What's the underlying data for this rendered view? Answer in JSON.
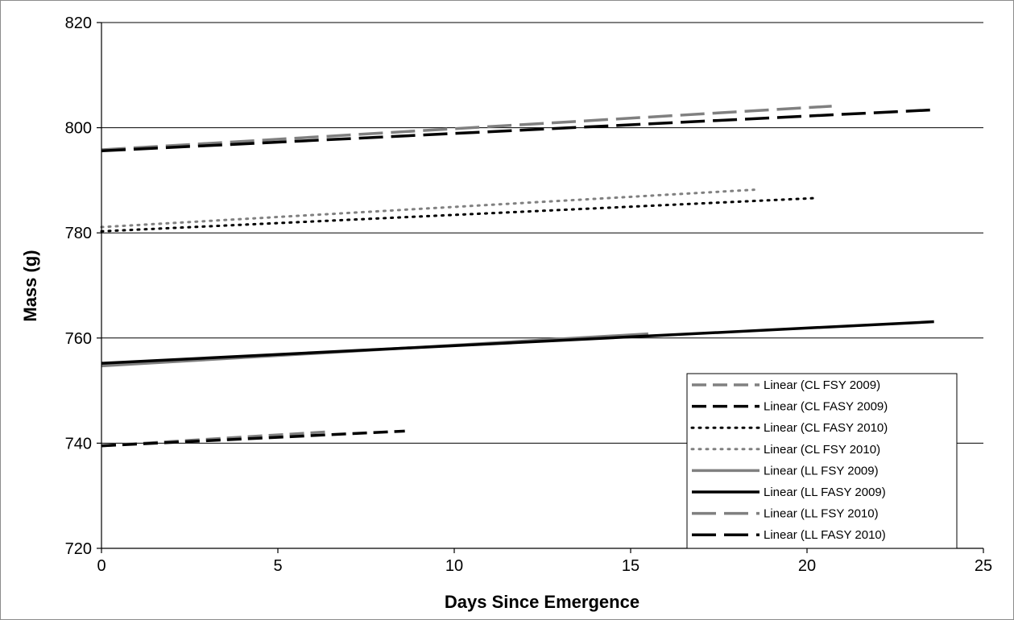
{
  "chart_data": {
    "type": "line",
    "title": "",
    "xlabel": "Days Since Emergence",
    "ylabel": "Mass (g)",
    "xlim": [
      0,
      25
    ],
    "ylim": [
      720,
      820
    ],
    "xticks": [
      0,
      5,
      10,
      15,
      20,
      25
    ],
    "yticks": [
      720,
      740,
      760,
      780,
      800,
      820
    ],
    "grid": "horizontal major",
    "legend_position": "bottom-right",
    "series": [
      {
        "name": "Linear (CL FSY 2009)",
        "color": "#808080",
        "style": "dashed",
        "x": [
          0,
          6.5
        ],
        "y": [
          739.5,
          742.2
        ]
      },
      {
        "name": "Linear (CL FASY 2009)",
        "color": "#000000",
        "style": "dashed",
        "x": [
          0,
          8.6
        ],
        "y": [
          739.5,
          742.3
        ]
      },
      {
        "name": "Linear (CL FASY 2010)",
        "color": "#000000",
        "style": "dotted",
        "x": [
          0,
          20.2
        ],
        "y": [
          780.3,
          786.6
        ]
      },
      {
        "name": "Linear (CL FSY 2010)",
        "color": "#808080",
        "style": "dotted",
        "x": [
          0,
          18.5
        ],
        "y": [
          781.1,
          788.2
        ]
      },
      {
        "name": "Linear (LL FSY 2009)",
        "color": "#808080",
        "style": "solid",
        "x": [
          0,
          15.5
        ],
        "y": [
          754.7,
          760.8
        ]
      },
      {
        "name": "Linear (LL FASY 2009)",
        "color": "#000000",
        "style": "solid",
        "x": [
          0,
          23.6
        ],
        "y": [
          755.2,
          763.1
        ]
      },
      {
        "name": "Linear (LL FSY 2010)",
        "color": "#808080",
        "style": "longdash",
        "x": [
          0,
          20.7
        ],
        "y": [
          795.8,
          804.1
        ]
      },
      {
        "name": "Linear (LL FASY 2010)",
        "color": "#000000",
        "style": "longdash",
        "x": [
          0,
          23.6
        ],
        "y": [
          795.6,
          803.4
        ]
      }
    ]
  }
}
